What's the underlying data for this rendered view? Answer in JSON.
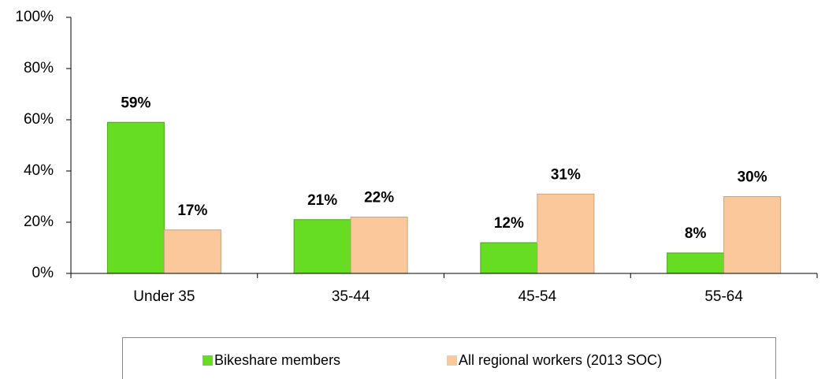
{
  "chart_data": {
    "type": "bar",
    "categories": [
      "Under 35",
      "35-44",
      "45-54",
      "55-64"
    ],
    "series": [
      {
        "name": "Bikeshare members",
        "color": "#66dd22",
        "values": [
          59,
          21,
          12,
          8
        ],
        "value_labels": [
          "59%",
          "21%",
          "12%",
          "8%"
        ]
      },
      {
        "name": "All regional workers (2013 SOC)",
        "color": "#fac89a",
        "values": [
          17,
          22,
          31,
          30
        ],
        "value_labels": [
          "17%",
          "22%",
          "31%",
          "30%"
        ]
      }
    ],
    "ylim": [
      0,
      100
    ],
    "yticks": [
      {
        "value": 0,
        "label": "0%"
      },
      {
        "value": 20,
        "label": "20%"
      },
      {
        "value": 40,
        "label": "40%"
      },
      {
        "value": 60,
        "label": "60%"
      },
      {
        "value": 80,
        "label": "80%"
      },
      {
        "value": 100,
        "label": "100%"
      }
    ],
    "legend": "bottom"
  }
}
